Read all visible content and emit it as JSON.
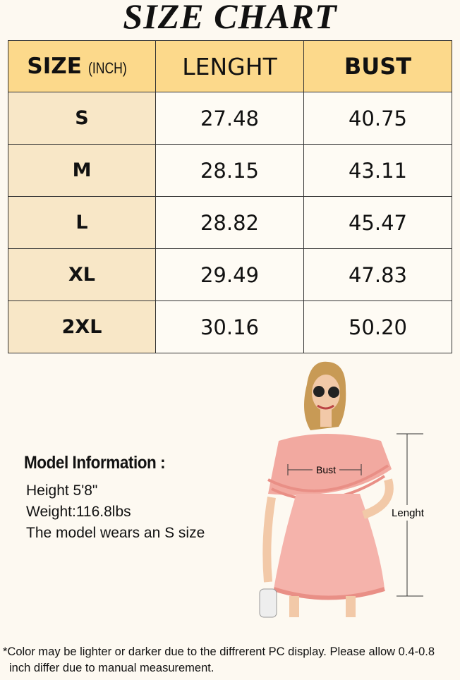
{
  "title": "SIZE CHART",
  "table": {
    "header": {
      "size": "SIZE",
      "unit": "(INCH)",
      "length": "LENGHT",
      "bust": "BUST"
    },
    "rows": [
      [
        "S",
        "27.48",
        "40.75"
      ],
      [
        "M",
        "28.15",
        "43.11"
      ],
      [
        "L",
        "28.82",
        "45.47"
      ],
      [
        "XL",
        "29.49",
        "47.83"
      ],
      [
        "2XL",
        "30.16",
        "50.20"
      ]
    ]
  },
  "model": {
    "heading": "Model Information :",
    "lines": [
      "Height 5'8\"",
      "Weight:116.8lbs",
      "The model wears an S size"
    ]
  },
  "figure": {
    "bust_label": "Bust",
    "length_label": "Lenght"
  },
  "footnote": "*Color may be lighter or darker due to the diffrerent PC display. Please allow 0.4-0.8 inch differ due to manual measurement."
}
